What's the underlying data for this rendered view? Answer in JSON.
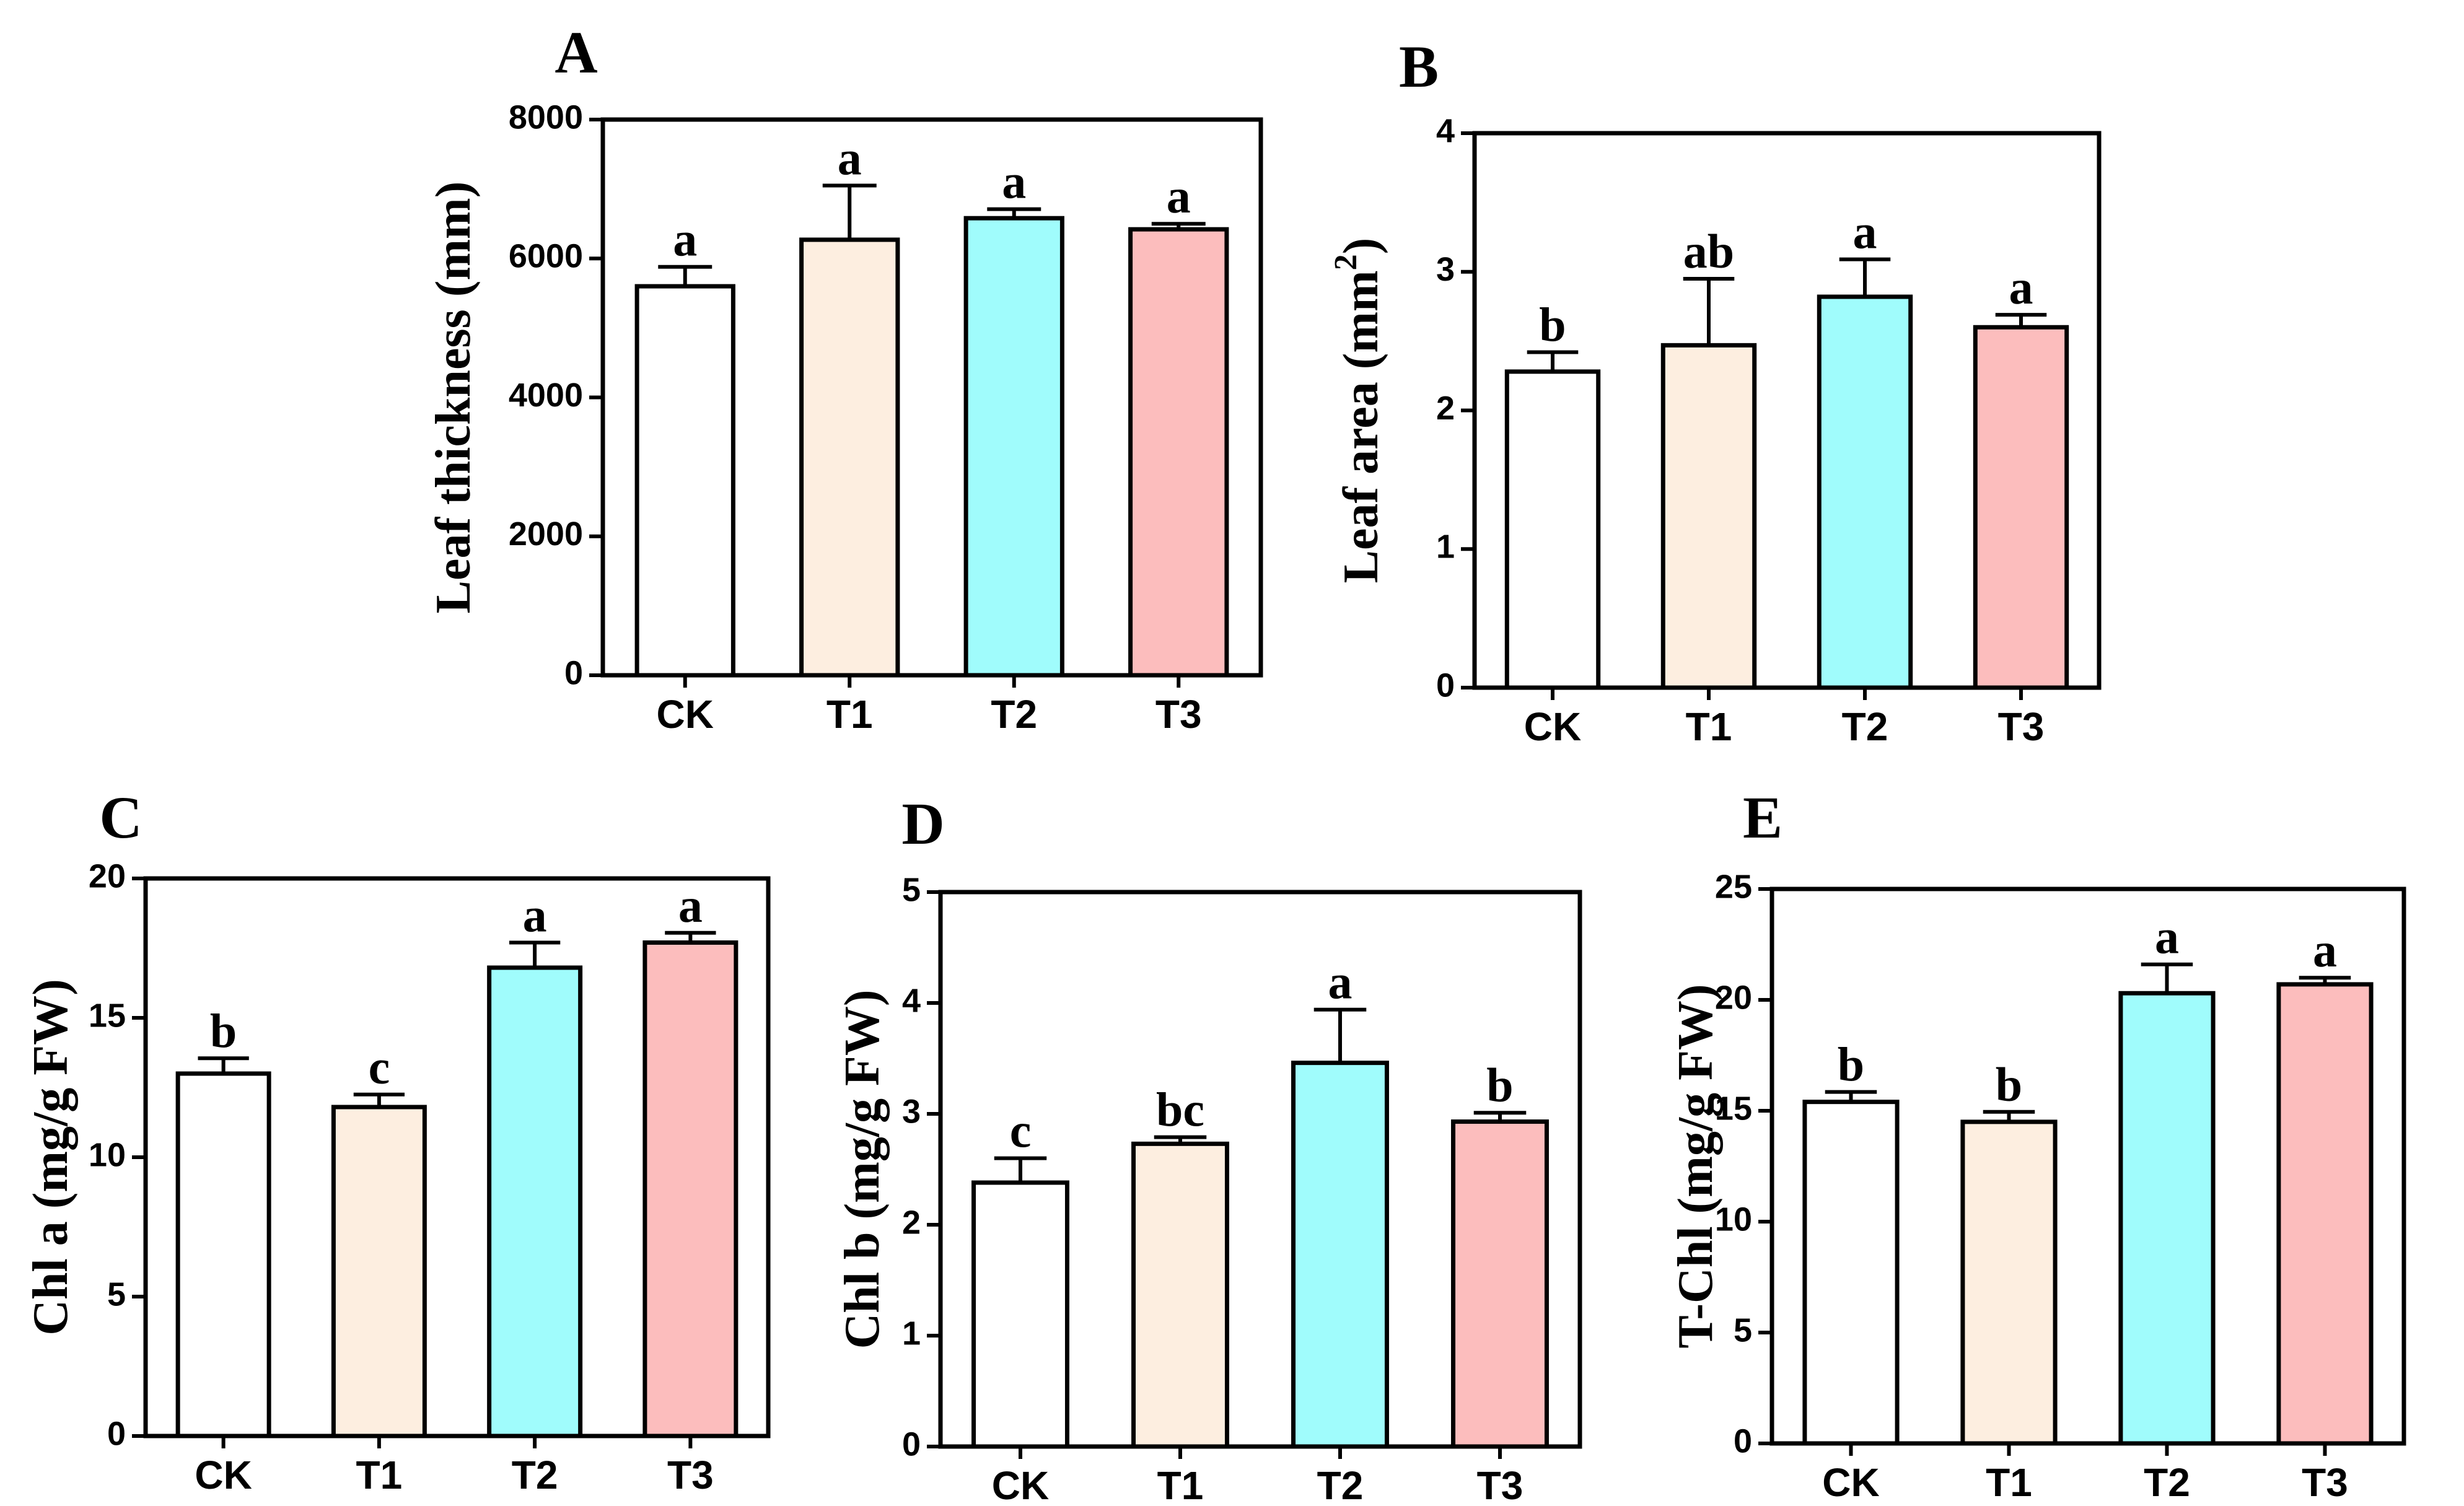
{
  "colors": {
    "CK": "#ffffff",
    "T1": "#fdeee0",
    "T2": "#a0fcfc",
    "T3": "#fcbdbd"
  },
  "chart_data": [
    {
      "panel": "A",
      "type": "bar",
      "ylabel": "Leaf thickness",
      "ylabel_unit": "(mm)",
      "ylim": [
        0,
        8000
      ],
      "yticks": [
        0,
        2000,
        4000,
        6000,
        8000
      ],
      "categories": [
        "CK",
        "T1",
        "T2",
        "T3"
      ],
      "values": [
        5600,
        6270,
        6580,
        6420
      ],
      "errors": [
        280,
        780,
        130,
        80
      ],
      "letters": [
        "a",
        "a",
        "a",
        "a"
      ]
    },
    {
      "panel": "B",
      "type": "bar",
      "ylabel": "Leaf area",
      "ylabel_unit": "(mm",
      "ylabel_sup": "2",
      "ylabel_close": ")",
      "ylim": [
        0,
        4
      ],
      "yticks": [
        0,
        1,
        2,
        3,
        4
      ],
      "categories": [
        "CK",
        "T1",
        "T2",
        "T3"
      ],
      "values": [
        2.28,
        2.47,
        2.82,
        2.6
      ],
      "errors": [
        0.14,
        0.48,
        0.27,
        0.09
      ],
      "letters": [
        "b",
        "ab",
        "a",
        "a"
      ]
    },
    {
      "panel": "C",
      "type": "bar",
      "ylabel": "Chl a",
      "ylabel_unit": "(mg/g FW)",
      "ylim": [
        0,
        20
      ],
      "yticks": [
        0,
        5,
        10,
        15,
        20
      ],
      "categories": [
        "CK",
        "T1",
        "T2",
        "T3"
      ],
      "values": [
        13.0,
        11.8,
        16.8,
        17.7
      ],
      "errors": [
        0.55,
        0.45,
        0.9,
        0.35
      ],
      "letters": [
        "b",
        "c",
        "a",
        "a"
      ]
    },
    {
      "panel": "D",
      "type": "bar",
      "ylabel": "Chl b",
      "ylabel_unit": "(mg/g FW)",
      "ylim": [
        0,
        5
      ],
      "yticks": [
        0,
        1,
        2,
        3,
        4,
        5
      ],
      "categories": [
        "CK",
        "T1",
        "T2",
        "T3"
      ],
      "values": [
        2.38,
        2.73,
        3.46,
        2.93
      ],
      "errors": [
        0.22,
        0.06,
        0.48,
        0.08
      ],
      "letters": [
        "c",
        "bc",
        "a",
        "b"
      ]
    },
    {
      "panel": "E",
      "type": "bar",
      "ylabel": "T-Chl",
      "ylabel_unit": "(mg/g FW)",
      "ylim": [
        0,
        25
      ],
      "yticks": [
        0,
        5,
        10,
        15,
        20,
        25
      ],
      "categories": [
        "CK",
        "T1",
        "T2",
        "T3"
      ],
      "values": [
        15.4,
        14.5,
        20.3,
        20.7
      ],
      "errors": [
        0.45,
        0.45,
        1.3,
        0.3
      ],
      "letters": [
        "b",
        "b",
        "a",
        "a"
      ]
    }
  ]
}
